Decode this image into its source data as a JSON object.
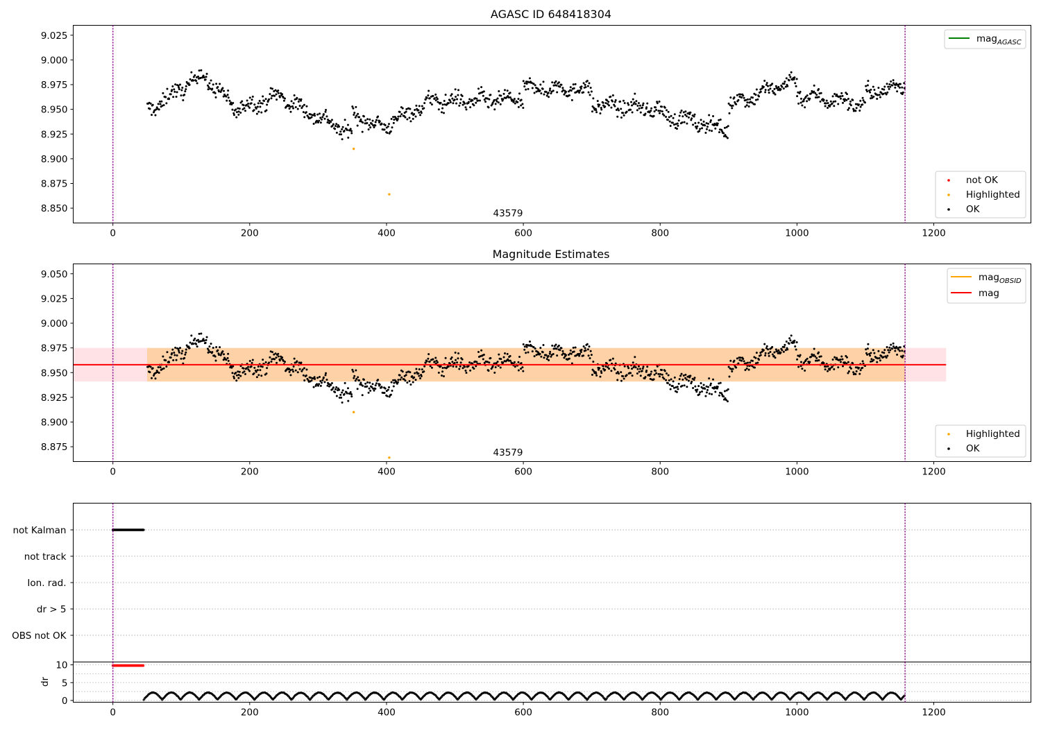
{
  "chart_data": [
    {
      "type": "scatter",
      "title": "AGASC ID 648418304",
      "xlim": [
        -58,
        1342
      ],
      "ylim": [
        8.835,
        9.035
      ],
      "x_ticks": [
        0,
        200,
        400,
        600,
        800,
        1000,
        1200
      ],
      "y_ticks": [
        8.85,
        8.875,
        8.9,
        8.925,
        8.95,
        8.975,
        9.0,
        9.025
      ],
      "vlines": [
        0,
        1158
      ],
      "obsid_label": "43579",
      "obsid_label_x": 580,
      "legend_lines": [
        {
          "label": "mag",
          "subscript": "AGASC",
          "color": "#008000"
        }
      ],
      "legend_points": [
        {
          "label": "not OK",
          "color": "#ff0000"
        },
        {
          "label": "Highlighted",
          "color": "#ffa500"
        },
        {
          "label": "OK",
          "color": "#000000"
        }
      ],
      "x_range": [
        50,
        1158
      ],
      "baseline": 8.955,
      "segments": [
        {
          "x": [
            50,
            130
          ],
          "y": [
            8.948,
            8.985
          ]
        },
        {
          "x": [
            130,
            180
          ],
          "y": [
            8.985,
            8.95
          ]
        },
        {
          "x": [
            180,
            250
          ],
          "y": [
            8.95,
            8.965
          ]
        },
        {
          "x": [
            250,
            350
          ],
          "y": [
            8.96,
            8.925
          ]
        },
        {
          "x": [
            350,
            400
          ],
          "y": [
            8.945,
            8.93
          ]
        },
        {
          "x": [
            400,
            470
          ],
          "y": [
            8.935,
            8.96
          ]
        },
        {
          "x": [
            470,
            600
          ],
          "y": [
            8.958,
            8.96
          ]
        },
        {
          "x": [
            600,
            700
          ],
          "y": [
            8.972,
            8.97
          ]
        },
        {
          "x": [
            700,
            800
          ],
          "y": [
            8.955,
            8.95
          ]
        },
        {
          "x": [
            800,
            900
          ],
          "y": [
            8.945,
            8.93
          ]
        },
        {
          "x": [
            900,
            1000
          ],
          "y": [
            8.955,
            8.98
          ]
        },
        {
          "x": [
            1000,
            1100
          ],
          "y": [
            8.965,
            8.955
          ]
        },
        {
          "x": [
            1100,
            1158
          ],
          "y": [
            8.965,
            8.975
          ]
        }
      ],
      "highlighted": [
        {
          "x": 352,
          "y": 8.91
        },
        {
          "x": 404,
          "y": 8.864
        }
      ]
    },
    {
      "type": "scatter",
      "title": "Magnitude Estimates",
      "xlim": [
        -58,
        1342
      ],
      "ylim": [
        8.86,
        9.06
      ],
      "x_ticks": [
        0,
        200,
        400,
        600,
        800,
        1000,
        1200
      ],
      "y_ticks": [
        8.875,
        8.9,
        8.925,
        8.95,
        8.975,
        9.0,
        9.025,
        9.05
      ],
      "vlines": [
        0,
        1158
      ],
      "obsid_label": "43579",
      "obsid_label_x": 580,
      "mag_line": {
        "value": 8.958,
        "color": "#ff0000",
        "x": [
          -58,
          1218
        ]
      },
      "mag_band": {
        "low": 8.941,
        "high": 8.975,
        "x": [
          -58,
          1218
        ],
        "color": "#ffb6c1"
      },
      "obsid_band": {
        "low": 8.941,
        "high": 8.975,
        "x": [
          50,
          1158
        ],
        "color": "#ffa500"
      },
      "legend_lines": [
        {
          "label": "mag",
          "subscript": "OBSID",
          "color": "#ffa500"
        },
        {
          "label": "mag",
          "subscript": "",
          "color": "#ff0000"
        }
      ],
      "legend_points": [
        {
          "label": "Highlighted",
          "color": "#ffa500"
        },
        {
          "label": "OK",
          "color": "#000000"
        }
      ],
      "highlighted": [
        {
          "x": 352,
          "y": 8.91
        },
        {
          "x": 404,
          "y": 8.864
        }
      ]
    },
    {
      "type": "scatter",
      "title": "",
      "flag_categories": [
        "not Kalman",
        "not track",
        "Ion. rad.",
        "dr > 5",
        "OBS not OK"
      ],
      "not_kalman_x": [
        0,
        45
      ],
      "xlim": [
        -58,
        1342
      ],
      "vlines": [
        0,
        1158
      ]
    },
    {
      "type": "scatter",
      "title": "",
      "ylabel": "dr",
      "xlim": [
        -58,
        1342
      ],
      "ylim": [
        -0.5,
        10.8
      ],
      "y_ticks": [
        0,
        5,
        10
      ],
      "x_ticks": [
        0,
        200,
        400,
        600,
        800,
        1000,
        1200
      ],
      "vlines": [
        0,
        1158
      ],
      "red_points": {
        "x": [
          0,
          45
        ],
        "y": 9.8
      },
      "dr_x": [
        45,
        1158
      ],
      "dr_range": [
        0.2,
        2.2
      ]
    }
  ]
}
